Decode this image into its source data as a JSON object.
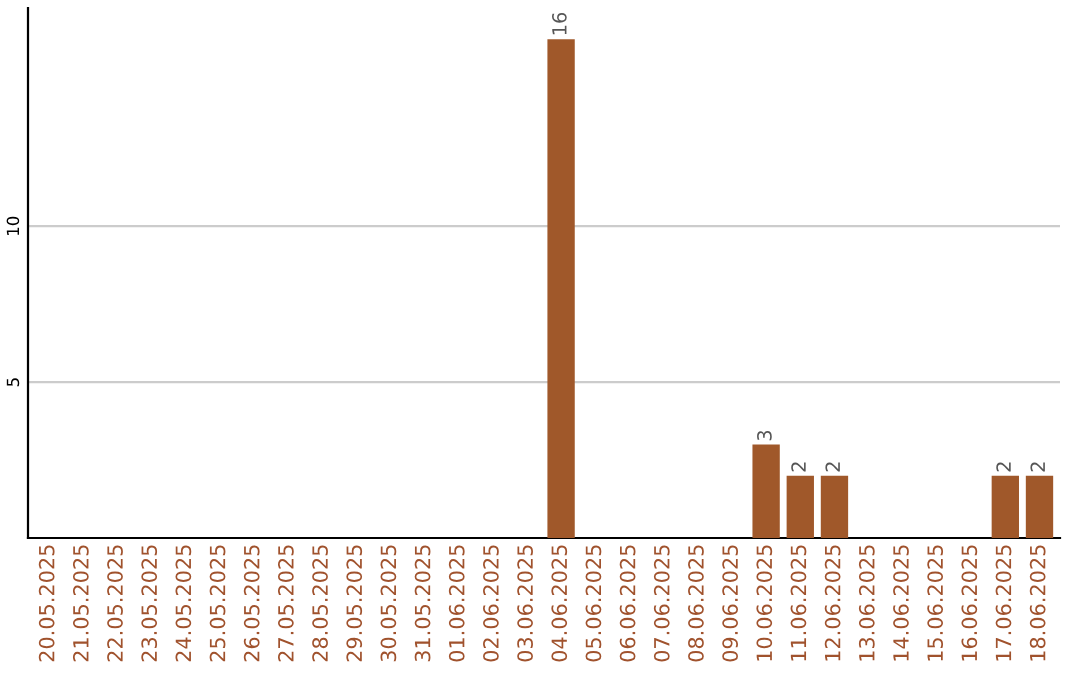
{
  "chart_data": {
    "type": "bar",
    "categories": [
      "20.05.2025",
      "21.05.2025",
      "22.05.2025",
      "23.05.2025",
      "24.05.2025",
      "25.05.2025",
      "26.05.2025",
      "27.05.2025",
      "28.05.2025",
      "29.05.2025",
      "30.05.2025",
      "31.05.2025",
      "01.06.2025",
      "02.06.2025",
      "03.06.2025",
      "04.06.2025",
      "05.06.2025",
      "06.06.2025",
      "07.06.2025",
      "08.06.2025",
      "09.06.2025",
      "10.06.2025",
      "11.06.2025",
      "12.06.2025",
      "13.06.2025",
      "14.06.2025",
      "15.06.2025",
      "16.06.2025",
      "17.06.2025",
      "18.06.2025"
    ],
    "values": [
      0,
      0,
      0,
      0,
      0,
      0,
      0,
      0,
      0,
      0,
      0,
      0,
      0,
      0,
      0,
      16,
      0,
      0,
      0,
      0,
      0,
      3,
      2,
      2,
      0,
      0,
      0,
      0,
      2,
      2
    ],
    "value_labels": [
      null,
      null,
      null,
      null,
      null,
      null,
      null,
      null,
      null,
      null,
      null,
      null,
      null,
      null,
      null,
      "16",
      null,
      null,
      null,
      null,
      null,
      "3",
      "2",
      "2",
      null,
      null,
      null,
      null,
      "2",
      "2"
    ],
    "color": "#a0582a",
    "ylim": [
      0,
      17
    ],
    "yticks": [
      5,
      10
    ],
    "grid": "y"
  }
}
